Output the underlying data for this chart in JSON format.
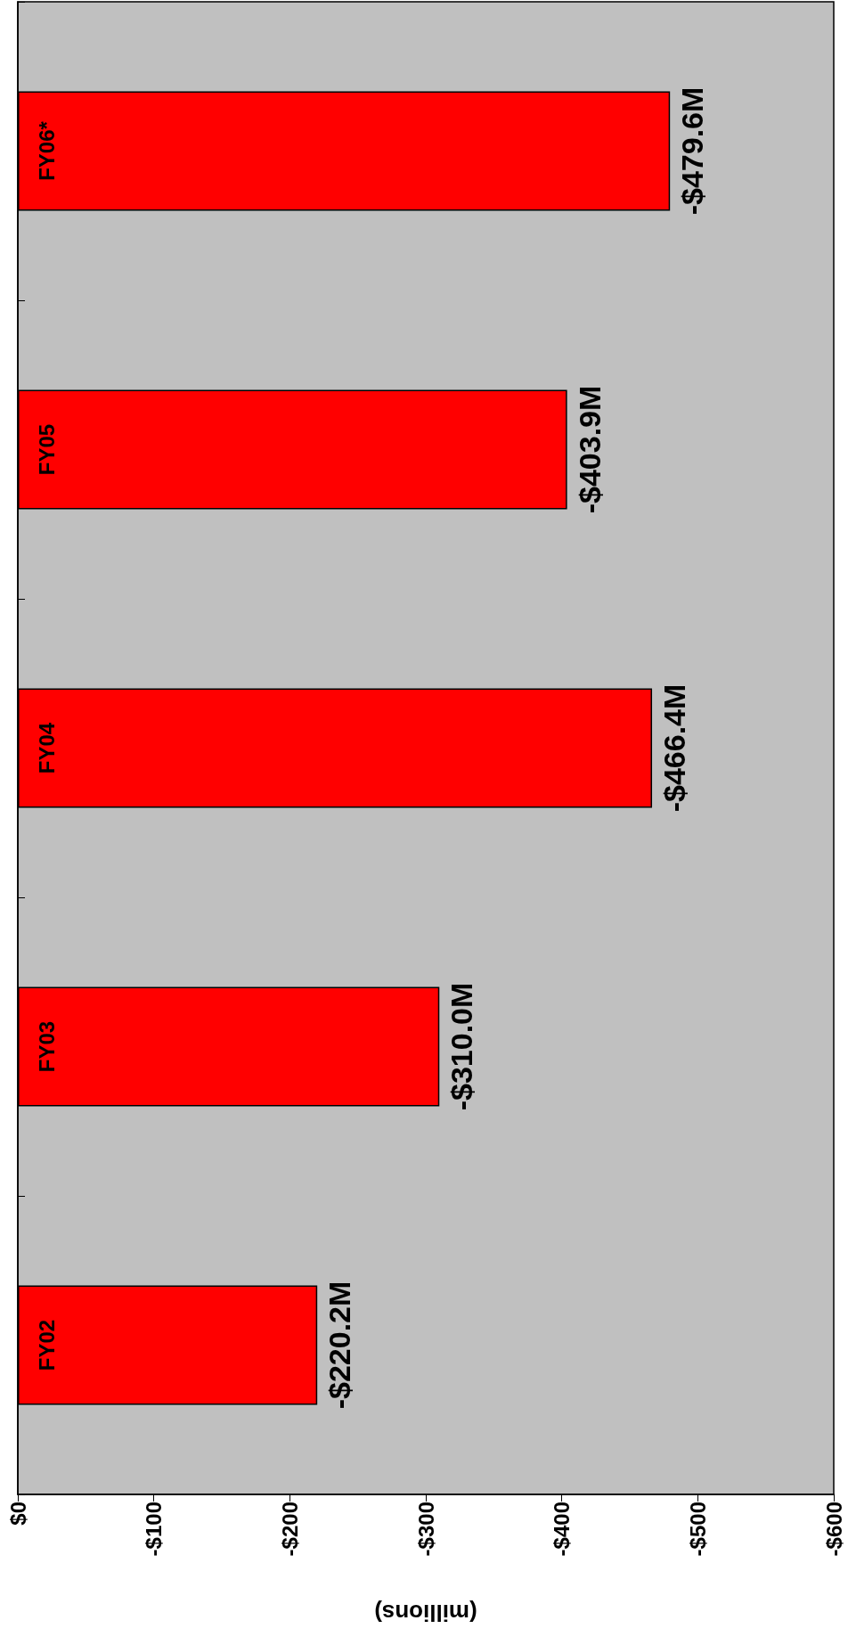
{
  "chart_data": {
    "type": "bar",
    "orientation": "horizontal",
    "xlabel": "(millions)",
    "categories": [
      "FY06*",
      "FY05",
      "FY04",
      "FY03",
      "FY02"
    ],
    "values": [
      -479.6,
      -403.9,
      -466.4,
      -310.0,
      -220.2
    ],
    "value_labels": [
      "-$479.6M",
      "-$403.9M",
      "-$466.4M",
      "-$310.0M",
      "-$220.2M"
    ],
    "color": "#ff0000",
    "xlim": [
      0,
      -600
    ],
    "xticks": [
      {
        "value": 0,
        "label": "$0"
      },
      {
        "value": -100,
        "label": "-$100"
      },
      {
        "value": -200,
        "label": "-$200"
      },
      {
        "value": -300,
        "label": "-$300"
      },
      {
        "value": -400,
        "label": "-$400"
      },
      {
        "value": -500,
        "label": "-$500"
      },
      {
        "value": -600,
        "label": "-$600"
      }
    ]
  }
}
